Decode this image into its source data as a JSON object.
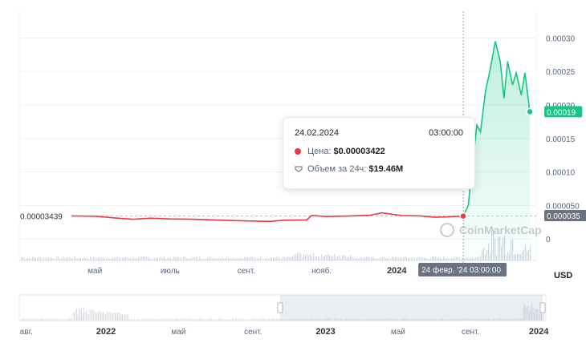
{
  "chart_data": {
    "type": "line",
    "currency": "USD",
    "y_ticks": [
      "0.00030",
      "0.00025",
      "0.00020",
      "0.00015",
      "0.00010",
      "0.000050",
      "0"
    ],
    "y_tick_values": [
      0.0003,
      0.00025,
      0.0002,
      0.00015,
      0.0001,
      5e-05,
      0
    ],
    "ylim": [
      -3.2e-05,
      0.00034
    ],
    "x_range": [
      "2022-04-10",
      "2024-04-20"
    ],
    "x_ticks": [
      {
        "date": "2023-05-01",
        "label": "май",
        "bold": false
      },
      {
        "date": "2023-07-01",
        "label": "июль",
        "bold": false
      },
      {
        "date": "2023-09-01",
        "label": "сент.",
        "bold": false
      },
      {
        "date": "2023-11-01",
        "label": "нояб.",
        "bold": false
      },
      {
        "date": "2024-01-01",
        "label": "2024",
        "bold": true
      }
    ],
    "main_x_range": [
      "2023-04-12",
      "2024-04-18"
    ],
    "start_price_label": "0.00003439",
    "start_price": 3.439e-05,
    "last_price_label": "0.00019",
    "last_price": 0.00019,
    "hover_price_label": "0.000035",
    "hover_price": 3.5e-05,
    "crosshair_label": "24 февр. '24   03:00:00",
    "crosshair_date": "2024-02-24",
    "series": [
      {
        "points": [
          [
            "2023-04-12",
            3.439e-05
          ],
          [
            "2023-05-01",
            3.4e-05
          ],
          [
            "2023-05-20",
            3.1e-05
          ],
          [
            "2023-06-01",
            2.95e-05
          ],
          [
            "2023-06-15",
            3.1e-05
          ],
          [
            "2023-07-01",
            3e-05
          ],
          [
            "2023-07-20",
            2.95e-05
          ],
          [
            "2023-08-10",
            2.82e-05
          ],
          [
            "2023-09-01",
            2.7e-05
          ],
          [
            "2023-09-20",
            2.62e-05
          ],
          [
            "2023-10-01",
            2.8e-05
          ],
          [
            "2023-10-20",
            2.85e-05
          ],
          [
            "2023-10-24",
            3.52e-05
          ],
          [
            "2023-11-05",
            3.35e-05
          ],
          [
            "2023-11-25",
            3.45e-05
          ],
          [
            "2023-12-10",
            3.55e-05
          ],
          [
            "2023-12-20",
            3.9e-05
          ],
          [
            "2024-01-05",
            3.5e-05
          ],
          [
            "2024-01-20",
            3.45e-05
          ],
          [
            "2024-02-01",
            3.25e-05
          ],
          [
            "2024-02-10",
            3.3e-05
          ],
          [
            "2024-02-24",
            3.422e-05
          ],
          [
            "2024-02-28",
            5e-05
          ],
          [
            "2024-03-03",
            0.00012
          ],
          [
            "2024-03-06",
            0.00017
          ],
          [
            "2024-03-09",
            0.00016
          ],
          [
            "2024-03-13",
            0.00022
          ],
          [
            "2024-03-17",
            0.000255
          ],
          [
            "2024-03-21",
            0.000295
          ],
          [
            "2024-03-25",
            0.000265
          ],
          [
            "2024-03-28",
            0.00021
          ],
          [
            "2024-03-31",
            0.000265
          ],
          [
            "2024-04-04",
            0.00023
          ],
          [
            "2024-04-07",
            0.000248
          ],
          [
            "2024-04-11",
            0.000215
          ],
          [
            "2024-04-14",
            0.000248
          ],
          [
            "2024-04-16",
            0.00022
          ],
          [
            "2024-04-18",
            0.00019
          ]
        ]
      }
    ],
    "nav_ticks": [
      {
        "date": "2022-04-20",
        "label": "авг.",
        "bold": false
      },
      {
        "date": "2022-08-10",
        "label": "2022",
        "bold": true
      },
      {
        "date": "2022-11-20",
        "label": "май",
        "bold": false
      },
      {
        "date": "2023-03-05",
        "label": "сент.",
        "bold": false
      },
      {
        "date": "2023-06-15",
        "label": "2023",
        "bold": true
      },
      {
        "date": "2023-09-25",
        "label": "май",
        "bold": false
      },
      {
        "date": "2024-01-05",
        "label": "сент.",
        "bold": false
      },
      {
        "date": "2024-04-10",
        "label": "2024",
        "bold": true
      }
    ],
    "watermark": "CoinMarketCap"
  },
  "tooltip": {
    "date": "24.02.2024",
    "time": "03:00:00",
    "price_label": "Цена:",
    "price_value": "$0.00003422",
    "volume_label": "Объем за 24ч:",
    "volume_value": "$19.46M"
  },
  "currency_label": "USD",
  "colors": {
    "up": "#16c784",
    "down": "#ea3943",
    "accent": "#16c784",
    "grid": "#eff2f5"
  }
}
